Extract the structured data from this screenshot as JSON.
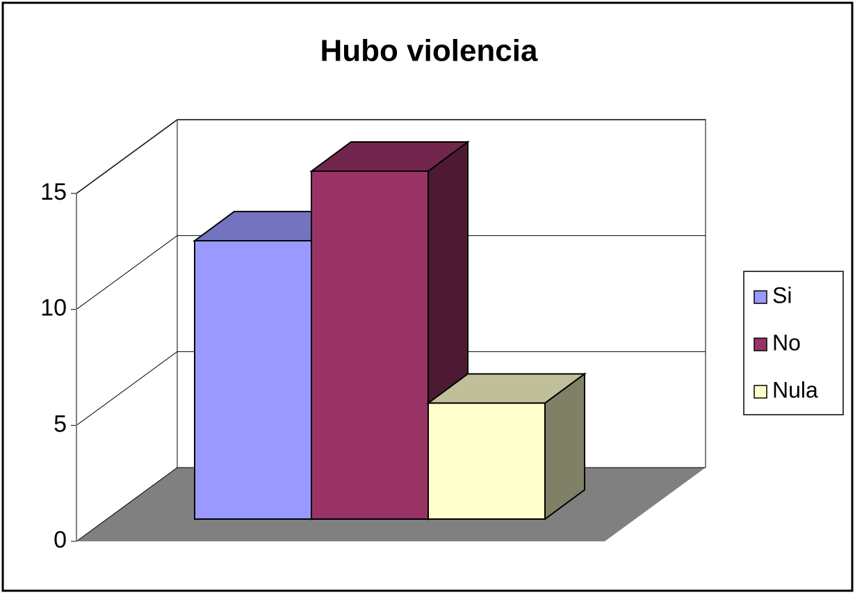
{
  "chart_data": {
    "type": "bar3d",
    "title": "Hubo violencia",
    "categories": [
      null
    ],
    "series": [
      {
        "name": "Si",
        "color": "#9999FF",
        "values": [
          12
        ]
      },
      {
        "name": "No",
        "color": "#993366",
        "values": [
          15
        ]
      },
      {
        "name": "Nula",
        "color": "#FFFFCC",
        "values": [
          5
        ]
      }
    ],
    "ylim": [
      0,
      15
    ],
    "yticks": [
      0,
      5,
      10,
      15
    ],
    "grid": true,
    "legend": "right"
  }
}
